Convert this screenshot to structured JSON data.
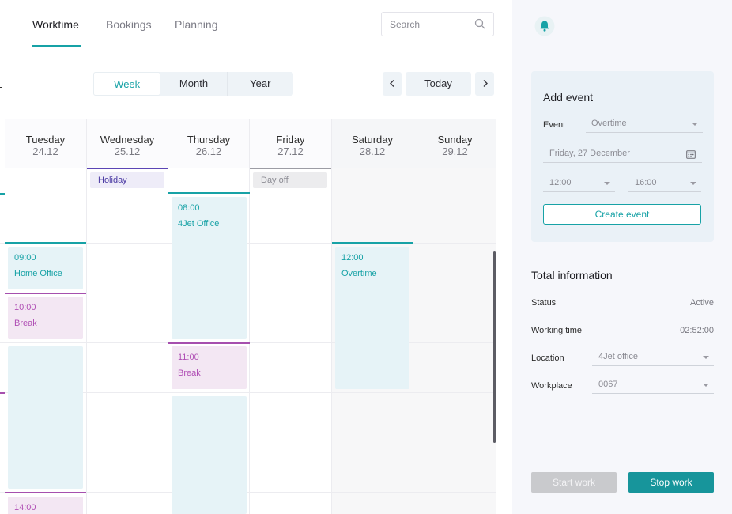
{
  "nav": {
    "tabs": [
      {
        "label": "Worktime",
        "active": true
      },
      {
        "label": "Bookings",
        "active": false
      },
      {
        "label": "Planning",
        "active": false
      }
    ],
    "search_placeholder": "Search",
    "search_icon": "search-icon"
  },
  "toolbar": {
    "views": [
      "Week",
      "Month",
      "Year"
    ],
    "active_view": "Week",
    "today_label": "Today",
    "prev_icon": "chevron-left-icon",
    "next_icon": "chevron-right-icon"
  },
  "calendar": {
    "days": [
      {
        "name": "Tuesday",
        "date": "24.12"
      },
      {
        "name": "Wednesday",
        "date": "25.12"
      },
      {
        "name": "Thursday",
        "date": "26.12"
      },
      {
        "name": "Friday",
        "date": "27.12"
      },
      {
        "name": "Saturday",
        "date": "28.12"
      },
      {
        "name": "Sunday",
        "date": "29.12"
      }
    ],
    "all_day": [
      {
        "day": "Wednesday",
        "label": "Holiday"
      },
      {
        "day": "Friday",
        "label": "Day off"
      }
    ],
    "events": [
      {
        "day": "Tuesday",
        "time": "09:00",
        "label": "Home Office",
        "kind": "office"
      },
      {
        "day": "Tuesday",
        "time": "10:00",
        "label": "Break",
        "kind": "break"
      },
      {
        "day": "Tuesday",
        "time": "14:00",
        "label": "",
        "kind": "break"
      },
      {
        "day": "Thursday",
        "time": "08:00",
        "label": "4Jet Office",
        "kind": "office"
      },
      {
        "day": "Thursday",
        "time": "11:00",
        "label": "Break",
        "kind": "break"
      },
      {
        "day": "Saturday",
        "time": "12:00",
        "label": "Overtime",
        "kind": "office"
      }
    ],
    "colors": {
      "accent": "#17a2a6",
      "break": "#b04fb5",
      "holiday": "#4b3aa3"
    }
  },
  "panel": {
    "bell_icon": "bell-icon",
    "add_event": {
      "title": "Add event",
      "event_label": "Event",
      "event_value": "Overtime",
      "date_value": "Friday, 27 December",
      "start_time": "12:00",
      "end_time": "16:00",
      "create_label": "Create event"
    },
    "total": {
      "title": "Total information",
      "rows": [
        {
          "label": "Status",
          "value": "Active"
        },
        {
          "label": "Working time",
          "value": "02:52:00"
        },
        {
          "label": "Location",
          "value": "4Jet office"
        },
        {
          "label": "Workplace",
          "value": "0067"
        }
      ]
    },
    "start_label": "Start work",
    "stop_label": "Stop work"
  }
}
